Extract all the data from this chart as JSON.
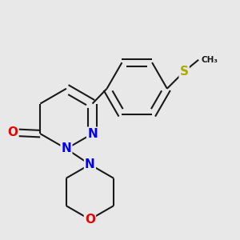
{
  "background_color": "#e8e8e8",
  "bond_color": "#1a1a1a",
  "bond_width": 1.5,
  "atom_colors": {
    "N": "#0000ee",
    "O": "#ee0000",
    "S": "#aaaa00",
    "C": "#1a1a1a"
  },
  "font_size_atom": 11,
  "fig_size": [
    3.0,
    3.0
  ],
  "dpi": 100
}
